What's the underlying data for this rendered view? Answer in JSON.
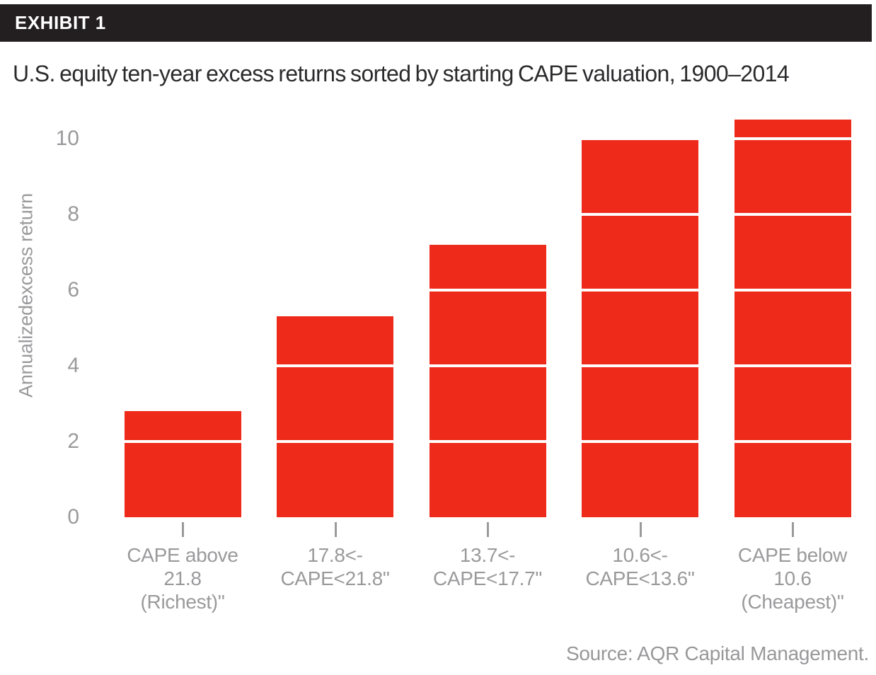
{
  "header": {
    "title": "EXHIBIT 1"
  },
  "subtitle": "U.S. equity ten-year excess returns sorted by starting CAPE valuation, 1900–2014",
  "source": "Source: AQR Capital Management.",
  "colors": {
    "header_bg": "#231f20",
    "header_text": "#ffffff",
    "subtitle_text": "#2b2b2d",
    "axis_text": "#9a9a9c",
    "bar_red": "#ee2b1b",
    "gridline_white": "#ffffff"
  },
  "chart_data": {
    "type": "bar",
    "title": "EXHIBIT 1",
    "subtitle": "U.S. equity ten-year excess returns sorted by starting CAPE valuation, 1900–2014",
    "categories": [
      "CAPE above 21.8 (Richest)\"",
      "17.8<- CAPE<21.8\"",
      "13.7<- CAPE<17.7\"",
      "10.6<- CAPE<13.6\"",
      "CAPE below 10.6 (Cheapest)\""
    ],
    "category_lines": [
      [
        "CAPE above",
        "21.8",
        "(Richest)\""
      ],
      [
        "17.8<-",
        "CAPE<21.8\""
      ],
      [
        "13.7<-",
        "CAPE<17.7\""
      ],
      [
        "10.6<-",
        "CAPE<13.6\""
      ],
      [
        "CAPE below",
        "10.6",
        "(Cheapest)\""
      ]
    ],
    "values": [
      2.8,
      5.3,
      7.2,
      10.0,
      10.5
    ],
    "xlabel": "",
    "ylabel": "Annualizedexcess return",
    "y_ticks": [
      0,
      2,
      4,
      6,
      8,
      10
    ],
    "gridline_values": [
      2,
      4,
      6,
      8,
      10
    ],
    "ylim": [
      0,
      10.8
    ],
    "grid": "white lines drawn over bars only",
    "legend": "none",
    "bar_color": "#ee2b1b"
  }
}
